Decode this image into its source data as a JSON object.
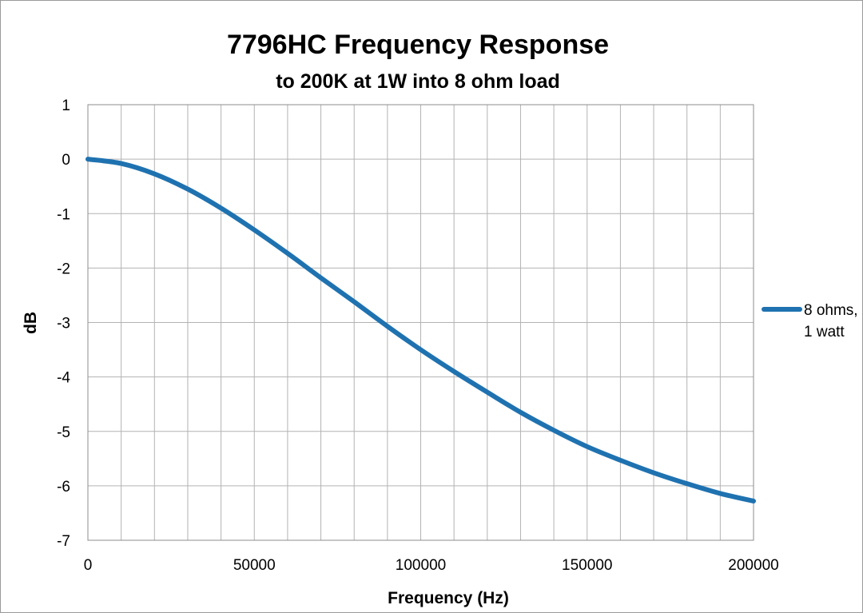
{
  "chart_data": {
    "type": "line",
    "title": "7796HC Frequency Response",
    "subtitle": "to 200K at 1W into 8 ohm load",
    "xlabel": "Frequency (Hz)",
    "ylabel": "dB",
    "xlim": [
      0,
      200000
    ],
    "ylim": [
      -7,
      1
    ],
    "x_ticks": [
      0,
      50000,
      100000,
      150000,
      200000
    ],
    "x_tick_labels": [
      "0",
      "50000",
      "100000",
      "150000",
      "200000"
    ],
    "y_ticks": [
      1,
      0,
      -1,
      -2,
      -3,
      -4,
      -5,
      -6,
      -7
    ],
    "y_tick_labels": [
      "1",
      "0",
      "-1",
      "-2",
      "-3",
      "-4",
      "-5",
      "-6",
      "-7"
    ],
    "x_minor_step": 10000,
    "grid": true,
    "legend_position": "right",
    "series": [
      {
        "name": "8 ohms, 1 watt",
        "legend_lines": [
          "8 ohms,",
          "1 watt"
        ],
        "color": "#1f72b0",
        "x": [
          0,
          10000,
          20000,
          30000,
          40000,
          50000,
          60000,
          70000,
          80000,
          90000,
          100000,
          110000,
          120000,
          130000,
          140000,
          150000,
          160000,
          170000,
          180000,
          190000,
          200000
        ],
        "y": [
          0,
          -0.08,
          -0.27,
          -0.55,
          -0.9,
          -1.3,
          -1.73,
          -2.18,
          -2.62,
          -3.07,
          -3.5,
          -3.9,
          -4.28,
          -4.65,
          -4.98,
          -5.28,
          -5.53,
          -5.76,
          -5.96,
          -6.14,
          -6.28
        ]
      }
    ]
  }
}
